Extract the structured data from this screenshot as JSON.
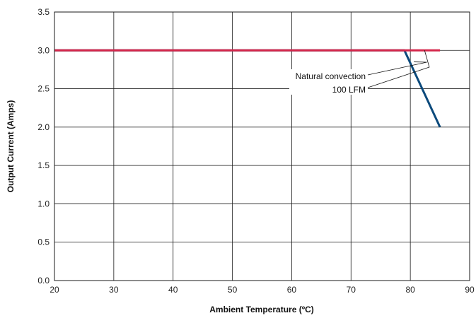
{
  "chart_data": {
    "type": "line",
    "xlabel": "Ambient Temperature (ºC)",
    "ylabel": "Output Current (Amps)",
    "xlim": [
      20,
      90
    ],
    "ylim": [
      0.0,
      3.5
    ],
    "xticks": [
      20,
      30,
      40,
      50,
      60,
      70,
      80,
      90
    ],
    "yticks": [
      "0.0",
      "0.5",
      "1.0",
      "1.5",
      "2.0",
      "2.5",
      "3.0",
      "3.5"
    ],
    "grid": true,
    "series": [
      {
        "name": "Natural convection",
        "color": "#0c4a7c",
        "x": [
          20,
          79,
          85
        ],
        "y": [
          3.0,
          3.0,
          2.0
        ]
      },
      {
        "name": "100 LFM",
        "color": "#d4264a",
        "x": [
          20,
          85
        ],
        "y": [
          3.0,
          3.0
        ]
      }
    ],
    "annotations": [
      {
        "text": "Natural convection",
        "points_to": "Natural convection"
      },
      {
        "text": "100 LFM",
        "points_to": "100 LFM"
      }
    ]
  }
}
